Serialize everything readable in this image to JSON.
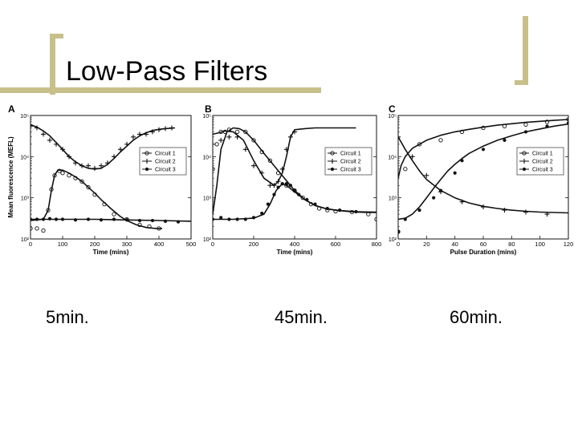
{
  "slide": {
    "title": "Low-Pass Filters",
    "captions": [
      "5min.",
      "45min.",
      "60min."
    ],
    "colors": {
      "accent": "#c8c08a",
      "line": "#111111"
    }
  },
  "chart_data": [
    {
      "type": "line",
      "panel_label": "A",
      "xlabel": "Time (mins)",
      "ylabel": "Mean fluorescence (MEFL)",
      "xlim": [
        0,
        500
      ],
      "xticks": [
        0,
        100,
        200,
        300,
        400,
        500
      ],
      "y_scale": "log",
      "ylim": [
        100,
        100000
      ],
      "yticks": [
        100,
        1000,
        10000,
        100000
      ],
      "ytick_labels": [
        "10²",
        "10³",
        "10⁴",
        "10⁵"
      ],
      "legend": "top-right",
      "series": [
        {
          "name": "Circuit 1",
          "marker": "circle",
          "curve": {
            "x": [
              0,
              40,
              55,
              65,
              75,
              85,
              100,
              120,
              140,
              160,
              180,
              200,
              220,
              250,
              280,
              300,
              330,
              360,
              390,
              410
            ],
            "y": [
              280,
              300,
              500,
              1500,
              3500,
              4700,
              4700,
              4000,
              3200,
              2500,
              1800,
              1300,
              900,
              550,
              350,
              280,
              220,
              190,
              180,
              180
            ]
          },
          "points": {
            "x": [
              0,
              20,
              40,
              55,
              65,
              75,
              90,
              100,
              120,
              140,
              160,
              180,
              200,
              230,
              260,
              300,
              340,
              370,
              400
            ],
            "y": [
              180,
              180,
              160,
              500,
              1600,
              3500,
              4500,
              4000,
              3500,
              3000,
              2500,
              1800,
              1200,
              700,
              400,
              300,
              220,
              200,
              180
            ]
          }
        },
        {
          "name": "Circuit 2",
          "marker": "plus",
          "curve": {
            "x": [
              0,
              20,
              40,
              60,
              80,
              100,
              120,
              140,
              160,
              180,
              200,
              220,
              240,
              260,
              280,
              300,
              320,
              340,
              360,
              380,
              400,
              420,
              450
            ],
            "y": [
              60000,
              52000,
              42000,
              32000,
              22000,
              15000,
              10000,
              7500,
              6000,
              5200,
              5000,
              5200,
              6500,
              9000,
              13000,
              18000,
              25000,
              32000,
              38000,
              43000,
              46000,
              48000,
              50000
            ]
          },
          "points": {
            "x": [
              0,
              20,
              40,
              60,
              80,
              100,
              120,
              140,
              160,
              180,
              200,
              220,
              240,
              260,
              280,
              300,
              320,
              340,
              360,
              380,
              400,
              420,
              440
            ],
            "y": [
              55000,
              50000,
              35000,
              25000,
              20000,
              15000,
              10000,
              7000,
              6000,
              6000,
              5200,
              6000,
              7000,
              10000,
              15000,
              20000,
              30000,
              35000,
              35000,
              40000,
              45000,
              48000,
              50000
            ]
          }
        },
        {
          "name": "Circuit 3",
          "marker": "dot",
          "curve": {
            "x": [
              0,
              100,
              200,
              300,
              400,
              500
            ],
            "y": [
              300,
              300,
              300,
              290,
              280,
              270
            ]
          },
          "points": {
            "x": [
              0,
              20,
              40,
              60,
              80,
              100,
              140,
              180,
              220,
              260,
              300,
              340,
              380,
              420,
              460
            ],
            "y": [
              300,
              300,
              300,
              310,
              300,
              300,
              290,
              300,
              290,
              300,
              290,
              280,
              280,
              270,
              260
            ]
          }
        }
      ]
    },
    {
      "type": "line",
      "panel_label": "B",
      "xlabel": "Time (mins)",
      "ylabel": "",
      "xlim": [
        0,
        800
      ],
      "xticks": [
        0,
        200,
        400,
        600,
        800
      ],
      "y_scale": "log",
      "ylim": [
        100,
        100000
      ],
      "yticks": [
        100,
        1000,
        10000,
        100000
      ],
      "ytick_labels": [
        "10²",
        "10³",
        "10⁴",
        "10⁵"
      ],
      "legend": "top-right",
      "series": [
        {
          "name": "Circuit 1",
          "marker": "circle",
          "curve": {
            "x": [
              0,
              20,
              40,
              70,
              100,
              130,
              160,
              200,
              250,
              300,
              350,
              400,
              450,
              500,
              550,
              600,
              650,
              700,
              760,
              800
            ],
            "y": [
              400,
              2000,
              15000,
              40000,
              50000,
              48000,
              40000,
              25000,
              12000,
              6000,
              3000,
              1500,
              900,
              650,
              550,
              500,
              470,
              450,
              440,
              440
            ]
          },
          "points": {
            "x": [
              0,
              20,
              40,
              60,
              80,
              120,
              160,
              200,
              240,
              280,
              320,
              360,
              400,
              440,
              480,
              520,
              560,
              600,
              680,
              760,
              800
            ],
            "y": [
              5000,
              20000,
              40000,
              40000,
              45000,
              40000,
              40000,
              25000,
              13000,
              8000,
              4000,
              2000,
              1500,
              1000,
              700,
              550,
              500,
              470,
              450,
              400,
              300
            ]
          }
        },
        {
          "name": "Circuit 2",
          "marker": "plus",
          "curve": {
            "x": [
              0,
              30,
              60,
              100,
              150,
              200,
              250,
              300,
              320,
              340,
              360,
              380,
              400,
              450,
              500,
              600,
              700
            ],
            "y": [
              35000,
              38000,
              42000,
              40000,
              25000,
              8000,
              3000,
              2000,
              2500,
              4000,
              10000,
              30000,
              45000,
              48000,
              50000,
              50000,
              50000
            ]
          },
          "points": {
            "x": [
              0,
              40,
              80,
              120,
              160,
              200,
              240,
              280,
              300,
              320,
              340,
              360,
              380,
              400
            ],
            "y": [
              20000,
              25000,
              30000,
              30000,
              15000,
              6000,
              4000,
              2000,
              2000,
              2500,
              5000,
              15000,
              30000,
              40000
            ]
          }
        },
        {
          "name": "Circuit 3",
          "marker": "dot",
          "curve": {
            "x": [
              0,
              100,
              200,
              250,
              280,
              310,
              340,
              360,
              400,
              450,
              500,
              550,
              600,
              700,
              800
            ],
            "y": [
              300,
              300,
              320,
              400,
              700,
              1500,
              2200,
              2000,
              1400,
              900,
              650,
              550,
              500,
              460,
              450
            ]
          },
          "points": {
            "x": [
              0,
              40,
              80,
              120,
              160,
              200,
              240,
              270,
              300,
              320,
              340,
              360,
              380,
              400,
              420,
              460,
              500,
              560,
              620,
              700
            ],
            "y": [
              300,
              330,
              300,
              300,
              300,
              330,
              420,
              700,
              1200,
              1800,
              2200,
              2200,
              2000,
              1500,
              1200,
              900,
              700,
              550,
              500,
              460
            ]
          }
        }
      ]
    },
    {
      "type": "line",
      "panel_label": "C",
      "xlabel": "Pulse Duration (mins)",
      "ylabel": "",
      "xlim": [
        0,
        120
      ],
      "xticks": [
        0,
        20,
        40,
        60,
        80,
        100,
        120
      ],
      "y_scale": "log",
      "ylim": [
        100,
        100000
      ],
      "yticks": [
        100,
        1000,
        10000,
        100000
      ],
      "ytick_labels": [
        "10²",
        "10³",
        "10⁴",
        "10⁵"
      ],
      "legend": "top-right",
      "series": [
        {
          "name": "Circuit 1",
          "marker": "circle",
          "curve": {
            "x": [
              0,
              2,
              5,
              10,
              15,
              20,
              30,
              40,
              50,
              60,
              70,
              80,
              90,
              100,
              110,
              120
            ],
            "y": [
              3000,
              6000,
              10000,
              16000,
              20000,
              25000,
              33000,
              40000,
              46000,
              52000,
              58000,
              63000,
              68000,
              72000,
              76000,
              80000
            ]
          },
          "points": {
            "x": [
              0,
              5,
              15,
              30,
              45,
              60,
              75,
              90,
              105,
              120
            ],
            "y": [
              150,
              5000,
              20000,
              25000,
              40000,
              50000,
              55000,
              60000,
              70000,
              80000
            ]
          }
        },
        {
          "name": "Circuit 2",
          "marker": "plus",
          "curve": {
            "x": [
              0,
              5,
              10,
              15,
              20,
              30,
              40,
              50,
              60,
              70,
              80,
              90,
              100,
              110,
              120
            ],
            "y": [
              30000,
              15000,
              8000,
              4500,
              2800,
              1500,
              1000,
              750,
              620,
              550,
              500,
              470,
              450,
              440,
              430
            ]
          },
          "points": {
            "x": [
              0,
              10,
              20,
              30,
              45,
              60,
              75,
              90,
              105
            ],
            "y": [
              30000,
              10000,
              3500,
              1400,
              800,
              600,
              500,
              450,
              400
            ]
          }
        },
        {
          "name": "Circuit 3",
          "marker": "dot",
          "curve": {
            "x": [
              0,
              5,
              10,
              15,
              20,
              25,
              30,
              35,
              40,
              45,
              50,
              60,
              70,
              80,
              90,
              100,
              110,
              120
            ],
            "y": [
              300,
              320,
              400,
              600,
              1000,
              1700,
              2800,
              4500,
              6500,
              9000,
              12000,
              18000,
              25000,
              32000,
              40000,
              47000,
              55000,
              62000
            ]
          },
          "points": {
            "x": [
              0,
              5,
              15,
              25,
              30,
              40,
              45,
              60,
              75,
              90,
              105,
              120
            ],
            "y": [
              150,
              300,
              500,
              1000,
              1500,
              4000,
              8000,
              15000,
              25000,
              40000,
              55000,
              65000
            ]
          }
        }
      ]
    }
  ]
}
